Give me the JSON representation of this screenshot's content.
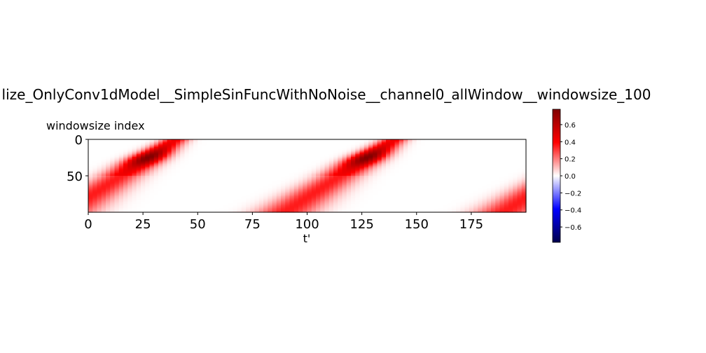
{
  "chart_data": {
    "type": "heatmap",
    "title": "lize_OnlyConv1dModel__SimpleSinFuncWithNoNoise__channel0_allWindow__windowsize_100",
    "xlabel": "t'",
    "ylabel": "windowsize index",
    "xlim": [
      0,
      200
    ],
    "ylim": [
      100,
      0
    ],
    "xticks": [
      {
        "value": 0,
        "label": "0"
      },
      {
        "value": 25,
        "label": "25"
      },
      {
        "value": 50,
        "label": "50"
      },
      {
        "value": 75,
        "label": "75"
      },
      {
        "value": 100,
        "label": "100"
      },
      {
        "value": 125,
        "label": "125"
      },
      {
        "value": 150,
        "label": "150"
      },
      {
        "value": 175,
        "label": "175"
      }
    ],
    "yticks": [
      {
        "value": 0,
        "label": "0"
      },
      {
        "value": 50,
        "label": "50"
      }
    ],
    "colormap": "seismic",
    "colorbar": {
      "vmin": -0.78,
      "vmax": 0.78,
      "ticks": [
        {
          "value": 0.6,
          "label": "0.6"
        },
        {
          "value": 0.4,
          "label": "0.4"
        },
        {
          "value": 0.2,
          "label": "0.2"
        },
        {
          "value": 0.0,
          "label": "0.0"
        },
        {
          "value": -0.2,
          "label": "−0.2"
        },
        {
          "value": -0.4,
          "label": "−0.4"
        },
        {
          "value": -0.6,
          "label": "−0.6"
        }
      ]
    },
    "grid": false,
    "data_description_values": {
      "period": 100,
      "band_start_t_row0": 40,
      "band_slope_rows_per_t": 2,
      "band_halfwidth_rows": 12,
      "peak_value": 0.78
    }
  }
}
